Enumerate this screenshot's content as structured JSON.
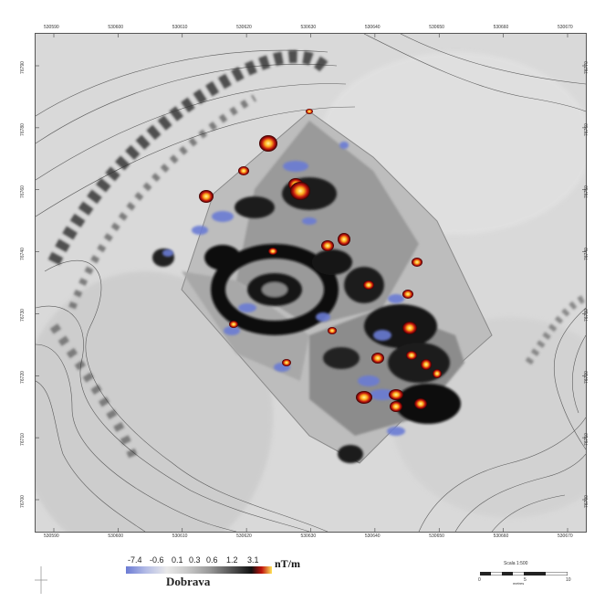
{
  "figure": {
    "site_name": "Dobrava",
    "unit": "nT/m",
    "legend_values": [
      "-7.4",
      "-0.6",
      "0.1",
      "0.3",
      "0.6",
      "1.2",
      "3.1"
    ],
    "scale_title": "Scala 1:500",
    "scale_unit": "metres",
    "scale_ticks": [
      "0",
      "5",
      "10"
    ],
    "x_ticks_top": [
      "530590",
      "530600",
      "530610",
      "530620",
      "530630",
      "530640",
      "530650",
      "530660",
      "530670"
    ],
    "x_ticks_bottom": [
      "530590",
      "530600",
      "530610",
      "530620",
      "530630",
      "530640",
      "530650",
      "530660",
      "530670"
    ],
    "y_ticks_left": [
      "76790",
      "76780",
      "76760",
      "76740",
      "76730",
      "76720",
      "76710",
      "76700"
    ],
    "y_ticks_right": [
      "76770",
      "76760",
      "76750",
      "76740",
      "76730",
      "76720",
      "76710",
      "76700"
    ]
  },
  "colors": {
    "negative": "#6b7bd4",
    "neutral": "#e9e9e9",
    "strong": "#111111",
    "positive_high": "#c0140e",
    "positive_peak": "#ffe45a"
  }
}
